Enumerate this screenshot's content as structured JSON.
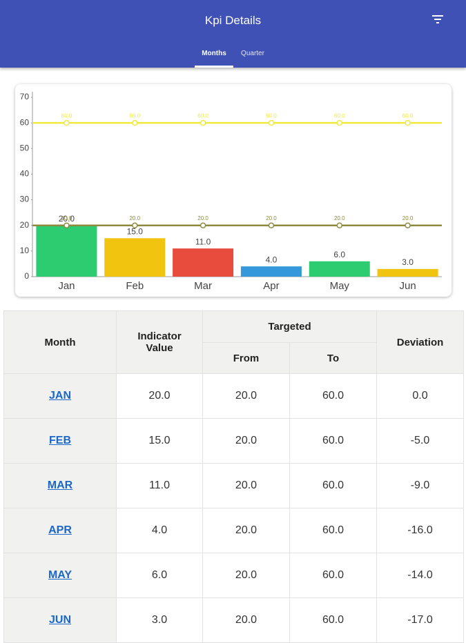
{
  "app_bar": {
    "title": "Kpi Details",
    "tabs": [
      "Months",
      "Quarter"
    ]
  },
  "chart_data": {
    "type": "bar",
    "categories": [
      "Jan",
      "Feb",
      "Mar",
      "Apr",
      "May",
      "Jun"
    ],
    "series": [
      {
        "type": "bar",
        "colors": [
          "#2ecc71",
          "#f1c40f",
          "#e74c3c",
          "#3498db",
          "#2ecc71",
          "#f1c40f"
        ],
        "values": [
          20,
          15,
          11,
          4,
          6,
          3
        ],
        "value_labels": [
          "20.0",
          "15.0",
          "11.0",
          "4.0",
          "6.0",
          "3.0"
        ]
      },
      {
        "type": "line",
        "color": "#eeea3c",
        "values": [
          60,
          60,
          60,
          60,
          60,
          60
        ],
        "value_labels": [
          "60.0",
          "60.0",
          "60.0",
          "60.0",
          "60.0",
          "60.0"
        ]
      },
      {
        "type": "line",
        "color": "#8c8a3e",
        "values": [
          20,
          20,
          20,
          20,
          20,
          20
        ],
        "value_labels": [
          "20.0",
          "20.0",
          "20.0",
          "20.0",
          "20.0",
          "20.0"
        ]
      }
    ],
    "ylim": [
      0,
      70
    ],
    "yticks": [
      0,
      10,
      20,
      30,
      40,
      50,
      60,
      70
    ]
  },
  "table": {
    "header": {
      "month": "Month",
      "indicator": "Indicator Value",
      "targeted": "Targeted",
      "from": "From",
      "to": "To",
      "deviation": "Deviation"
    },
    "rows": [
      [
        "JAN",
        "20.0",
        "20.0",
        "60.0",
        "0.0"
      ],
      [
        "FEB",
        "15.0",
        "20.0",
        "60.0",
        "-5.0"
      ],
      [
        "MAR",
        "11.0",
        "20.0",
        "60.0",
        "-9.0"
      ],
      [
        "APR",
        "4.0",
        "20.0",
        "60.0",
        "-16.0"
      ],
      [
        "MAY",
        "6.0",
        "20.0",
        "60.0",
        "-14.0"
      ],
      [
        "JUN",
        "3.0",
        "20.0",
        "60.0",
        "-17.0"
      ]
    ]
  }
}
